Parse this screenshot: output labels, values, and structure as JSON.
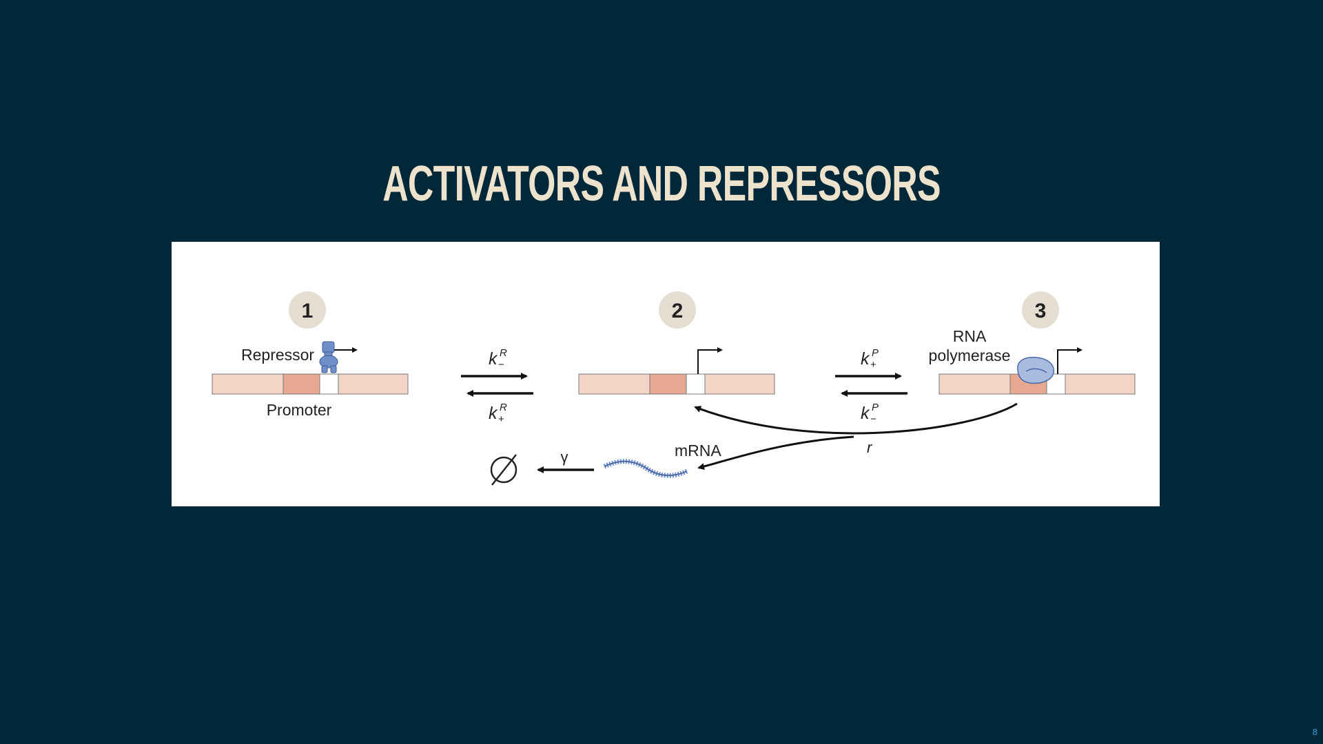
{
  "slide": {
    "title": "ACTIVATORS AND REPRESSORS",
    "page_number": "8"
  },
  "diagram": {
    "states": [
      {
        "number": "1",
        "labels": [
          "Repressor",
          "Promoter"
        ]
      },
      {
        "number": "2"
      },
      {
        "number": "3",
        "labels": [
          "RNA",
          "polymerase"
        ]
      }
    ],
    "rates": {
      "k": "k",
      "repressor_sup": "R",
      "polymerase_sup": "P",
      "minus": "−",
      "plus": "+",
      "transcription": "r",
      "decay": "γ"
    },
    "product_label": "mRNA",
    "degraded_symbol": "∅"
  },
  "colors": {
    "background": "#002838",
    "title": "#ede3cd",
    "dna_light": "#f2d5c6",
    "dna_promoter": "#e6a891",
    "protein_blue": "#6f8fc8",
    "number_circle": "#e4ddd1"
  }
}
